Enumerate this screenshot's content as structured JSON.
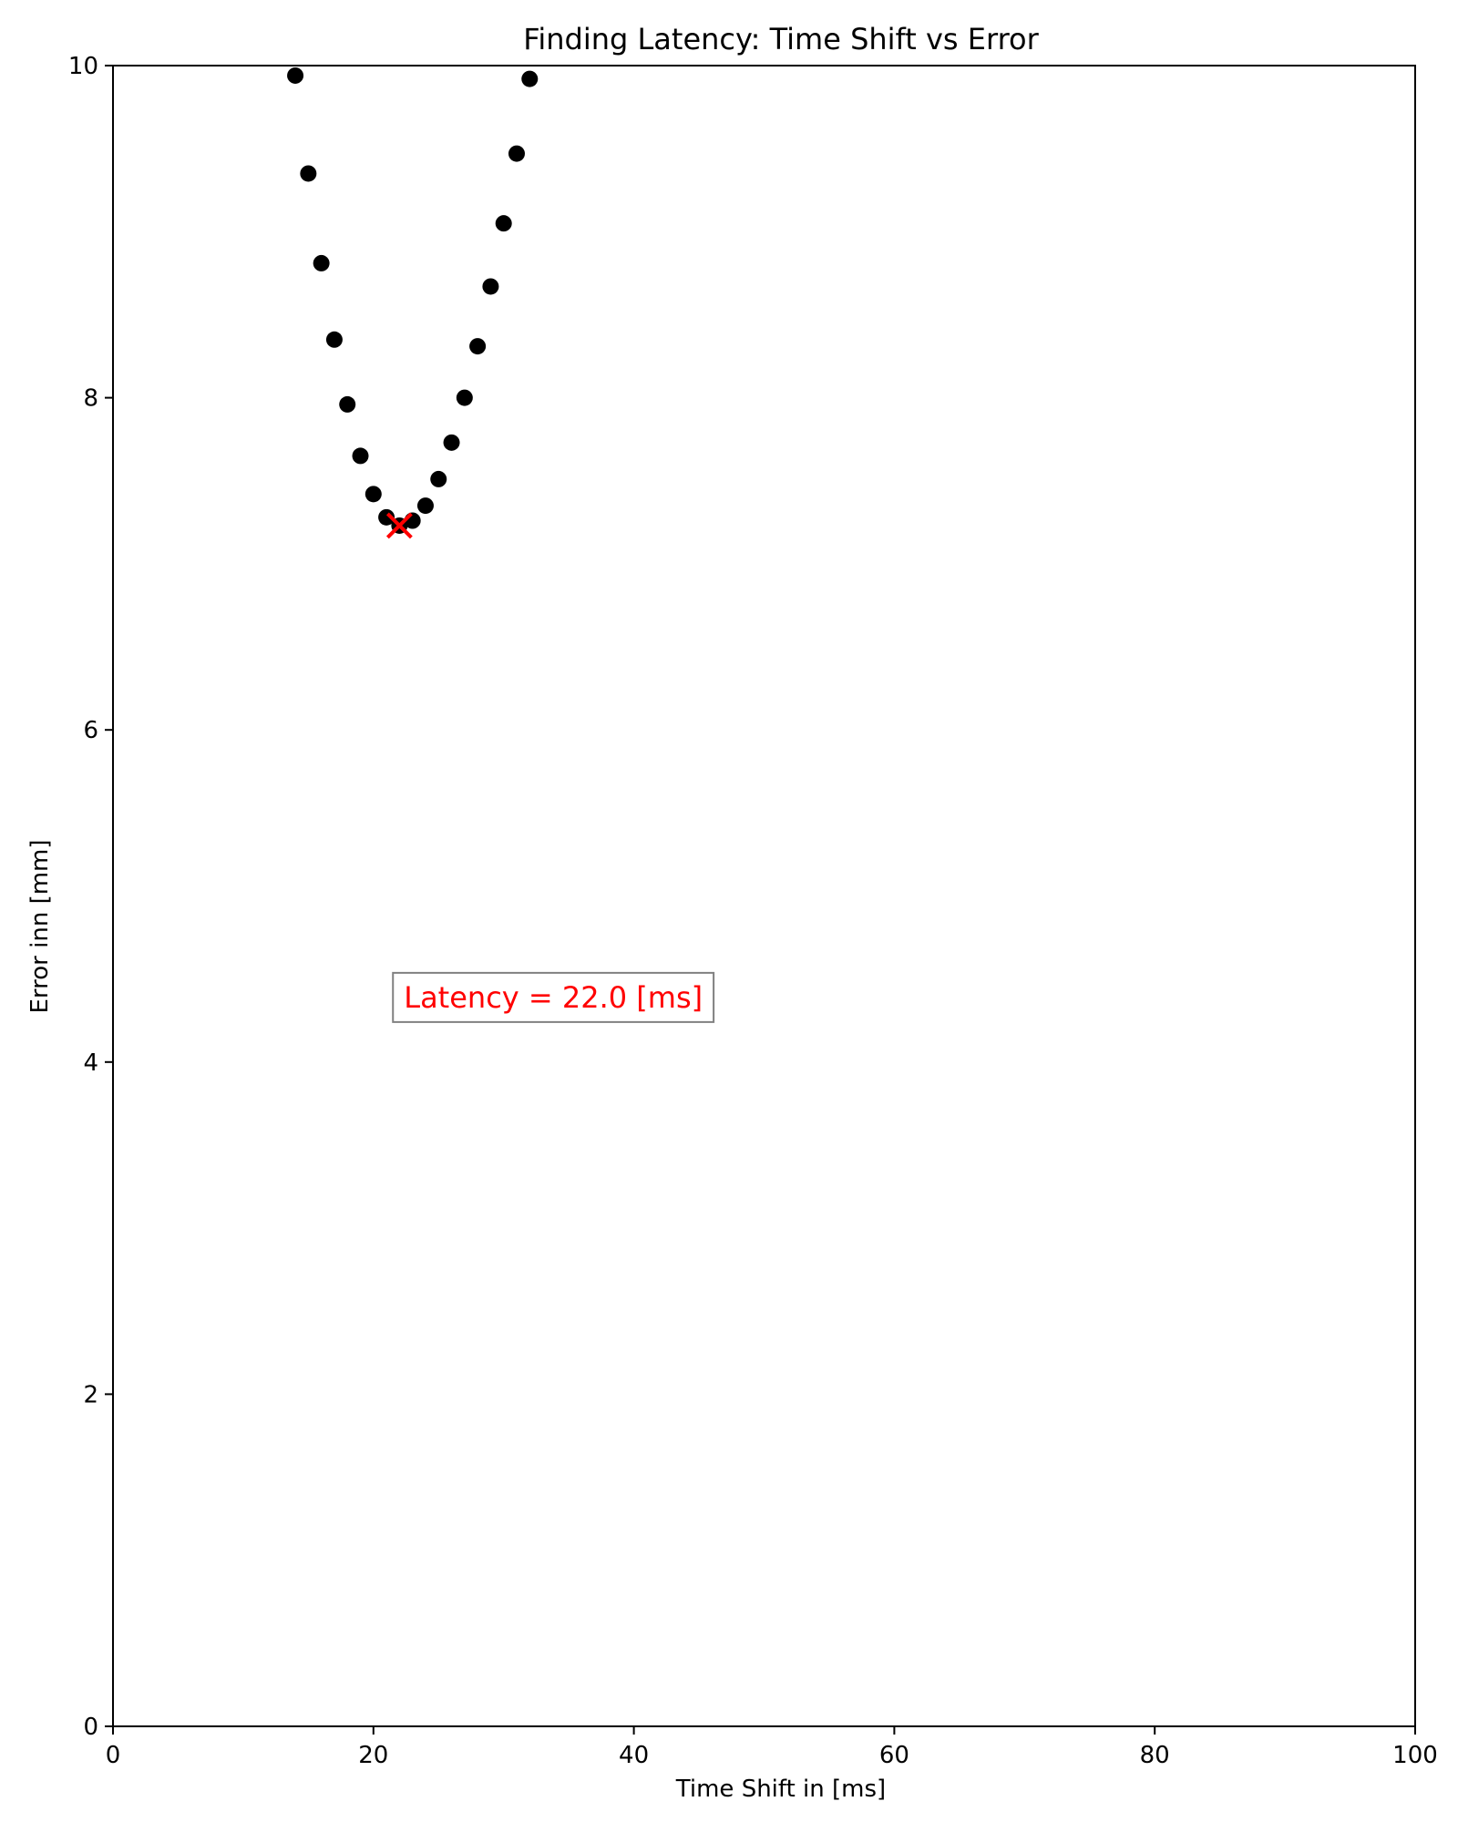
{
  "chart_data": {
    "type": "scatter",
    "title": "Finding Latency: Time Shift vs Error",
    "xlabel": "Time Shift in [ms]",
    "ylabel": "Error inn [mm]",
    "xlim": [
      0,
      100
    ],
    "ylim": [
      0,
      10
    ],
    "x_ticks": [
      0,
      20,
      40,
      60,
      80,
      100
    ],
    "y_ticks": [
      0,
      2,
      4,
      6,
      8,
      10
    ],
    "grid": false,
    "series": [
      {
        "marker": "circle",
        "color": "#000000",
        "points": [
          {
            "x": 14,
            "y": 9.94
          },
          {
            "x": 15,
            "y": 9.35
          },
          {
            "x": 16,
            "y": 8.81
          },
          {
            "x": 17,
            "y": 8.35
          },
          {
            "x": 18,
            "y": 7.96
          },
          {
            "x": 19,
            "y": 7.65
          },
          {
            "x": 20,
            "y": 7.42
          },
          {
            "x": 21,
            "y": 7.28
          },
          {
            "x": 22,
            "y": 7.23
          },
          {
            "x": 23,
            "y": 7.26
          },
          {
            "x": 24,
            "y": 7.35
          },
          {
            "x": 25,
            "y": 7.51
          },
          {
            "x": 26,
            "y": 7.73
          },
          {
            "x": 27,
            "y": 8.0
          },
          {
            "x": 28,
            "y": 8.31
          },
          {
            "x": 29,
            "y": 8.67
          },
          {
            "x": 30,
            "y": 9.05
          },
          {
            "x": 31,
            "y": 9.47
          },
          {
            "x": 32,
            "y": 9.92
          }
        ]
      }
    ],
    "minimum_marker": {
      "x": 22,
      "y": 7.23,
      "marker": "x",
      "color": "#ff0000"
    },
    "annotation": {
      "text": "Latency = 22.0 [ms]",
      "x": 21.5,
      "y": 4.4,
      "color": "#ff0000",
      "box_edge_color": "#808080"
    }
  }
}
